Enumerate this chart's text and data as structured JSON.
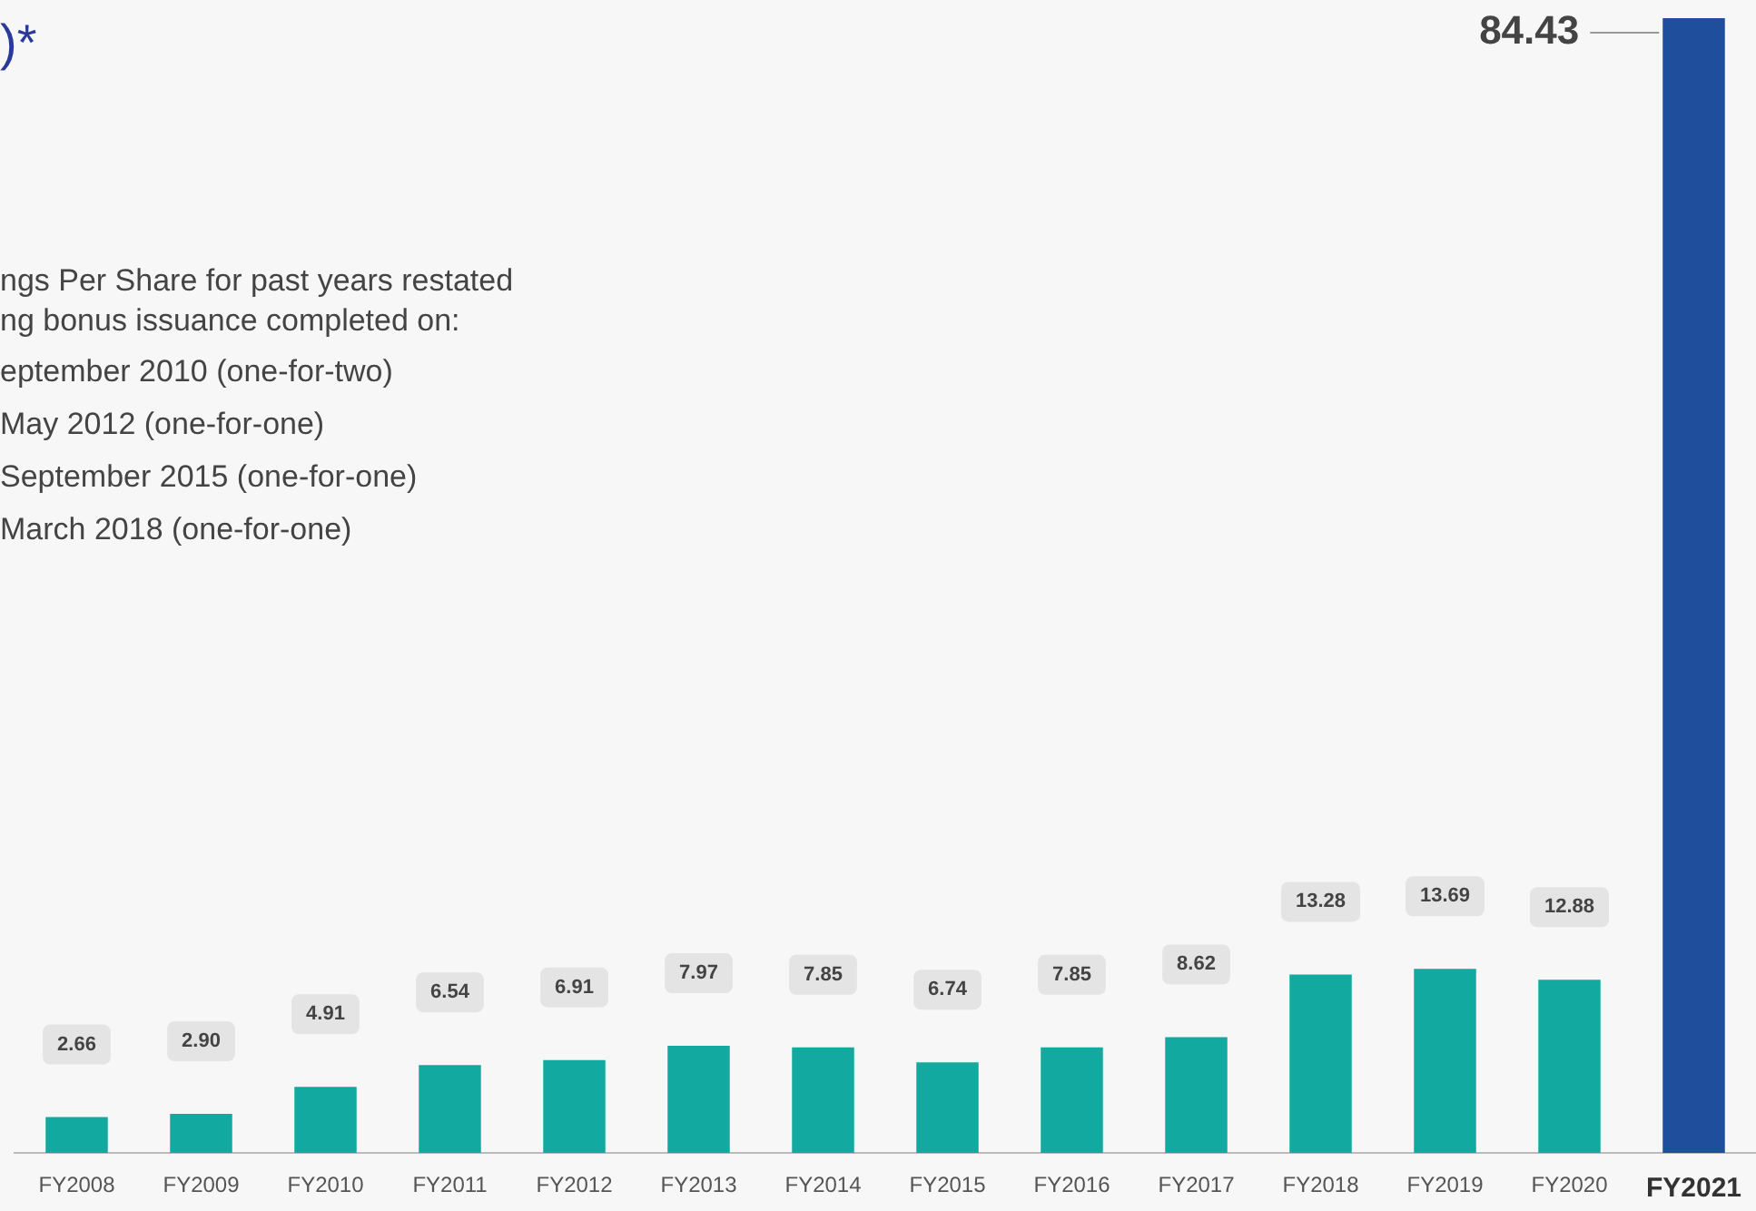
{
  "chart_data": {
    "type": "bar",
    "title": ")*",
    "relative": false,
    "annotations": [
      "ngs Per Share for past years restated",
      "ng bonus issuance completed on:",
      "eptember 2010 (one-for-two)",
      "May 2012  (one-for-one)",
      "September 2015  (one-for-one)",
      "March 2018  (one-for-one)"
    ],
    "categories": [
      "FY2008",
      "FY2009",
      "FY2010",
      "FY2011",
      "FY2012",
      "FY2013",
      "FY2014",
      "FY2015",
      "FY2016",
      "FY2017",
      "FY2018",
      "FY2019",
      "FY2020",
      "FY2021"
    ],
    "values": [
      2.66,
      2.9,
      4.91,
      6.54,
      6.91,
      7.97,
      7.85,
      6.74,
      7.85,
      8.62,
      13.28,
      13.69,
      12.88,
      84.43
    ],
    "value_labels": [
      "2.66",
      "2.90",
      "4.91",
      "6.54",
      "6.91",
      "7.97",
      "7.85",
      "6.74",
      "7.85",
      "8.62",
      "13.28",
      "13.69",
      "12.88",
      "84.43"
    ],
    "colors": [
      "#12aaa0",
      "#12aaa0",
      "#12aaa0",
      "#12aaa0",
      "#12aaa0",
      "#12aaa0",
      "#12aaa0",
      "#12aaa0",
      "#12aaa0",
      "#12aaa0",
      "#12aaa0",
      "#12aaa0",
      "#12aaa0",
      "#1f4e9c"
    ]
  }
}
